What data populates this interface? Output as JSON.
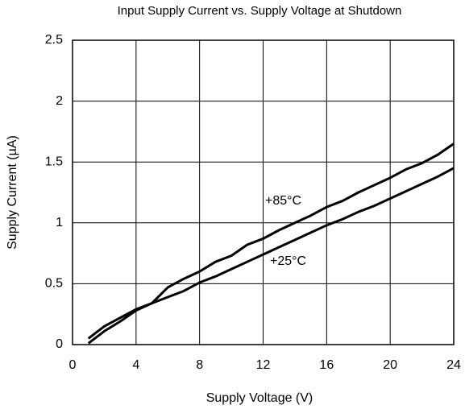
{
  "chart_data": {
    "type": "line",
    "title": "Input Supply Current vs. Supply Voltage at Shutdown",
    "x_label": "Supply Voltage (V)",
    "y_label": "Supply Current (µA)",
    "x": [
      1,
      2,
      3,
      4,
      5,
      6,
      7,
      8,
      9,
      10,
      11,
      12,
      13,
      14,
      15,
      16,
      17,
      18,
      19,
      20,
      21,
      22,
      23,
      24
    ],
    "series": [
      {
        "name": "+85°C",
        "color": "#000000",
        "values": [
          0.05,
          0.15,
          0.22,
          0.29,
          0.34,
          0.47,
          0.54,
          0.6,
          0.68,
          0.73,
          0.82,
          0.87,
          0.94,
          1.0,
          1.06,
          1.13,
          1.18,
          1.25,
          1.31,
          1.37,
          1.44,
          1.49,
          1.56,
          1.65
        ]
      },
      {
        "name": "+25°C",
        "color": "#000000",
        "values": [
          0.01,
          0.11,
          0.19,
          0.28,
          0.34,
          0.39,
          0.44,
          0.51,
          0.56,
          0.62,
          0.68,
          0.74,
          0.8,
          0.86,
          0.92,
          0.98,
          1.03,
          1.09,
          1.14,
          1.2,
          1.26,
          1.32,
          1.38,
          1.45
        ]
      }
    ],
    "xlim": [
      0,
      24
    ],
    "xticks": [
      0,
      4,
      8,
      12,
      16,
      20,
      24
    ],
    "ylim": [
      0,
      2.5
    ],
    "yticks": [
      0,
      0.5,
      1,
      1.5,
      2,
      2.5
    ],
    "grid": true
  }
}
